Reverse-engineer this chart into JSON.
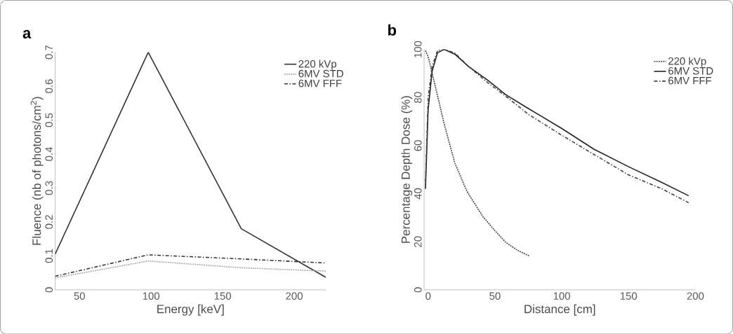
{
  "chart_data": [
    {
      "type": "line",
      "title": "a",
      "xlabel": "Energy [keV]",
      "ylabel": "Fluence (nb of photons/cm$^{2}$)",
      "xlim": [
        33,
        222
      ],
      "ylim": [
        0,
        0.7
      ],
      "xticks": [
        50,
        100,
        150,
        200
      ],
      "yticks": [
        0,
        0.1,
        0.2,
        0.3,
        0.4,
        0.5,
        0.6,
        0.7
      ],
      "legend": "top right",
      "marker": "none",
      "series": [
        {
          "name": "220 kVp",
          "color": "#333333",
          "line_style": "solid",
          "x": [
            33,
            98,
            163,
            222
          ],
          "values": [
            0.105,
            0.7,
            0.18,
            0.037
          ]
        },
        {
          "name": "6MV STD",
          "color": "#aaaaaa",
          "line_style": "dotted",
          "x": [
            33,
            98,
            163,
            222
          ],
          "values": [
            0.035,
            0.085,
            0.065,
            0.055
          ]
        },
        {
          "name": "6MV FFF",
          "color": "#333333",
          "line_style": "dashed",
          "x": [
            33,
            98,
            163,
            222
          ],
          "values": [
            0.04,
            0.103,
            0.091,
            0.079
          ]
        }
      ]
    },
    {
      "type": "line",
      "title": "b",
      "xlabel": "Distance [cm]",
      "ylabel": "Percentage Depth Dose (%)",
      "xlim": [
        -3,
        200
      ],
      "ylim": [
        0,
        100
      ],
      "xticks": [
        0,
        50,
        100,
        150,
        200
      ],
      "yticks": [
        0,
        20,
        40,
        60,
        80,
        100
      ],
      "legend": "top right",
      "marker": "none",
      "series": [
        {
          "name": "220 kVp",
          "color": "#444444",
          "line_style": "dotted",
          "x": [
            -2,
            0,
            5,
            12,
            20,
            29,
            41,
            50,
            58,
            67,
            76
          ],
          "values": [
            99.5,
            97,
            85.5,
            69,
            52.7,
            41,
            30.4,
            24.6,
            19.8,
            16.4,
            14
          ]
        },
        {
          "name": "6MV STD",
          "color": "#222222",
          "line_style": "solid",
          "x": [
            -2,
            0,
            3,
            7,
            12,
            20,
            30,
            45,
            58,
            75,
            100,
            124,
            150,
            174,
            195
          ],
          "values": [
            42,
            75,
            91,
            98.6,
            100,
            98,
            93,
            87,
            81.2,
            75.4,
            67.1,
            58.5,
            51.2,
            44.9,
            39.1
          ]
        },
        {
          "name": "6MV FFF",
          "color": "#444444",
          "line_style": "dashed",
          "x": [
            -2,
            0,
            3,
            7,
            12,
            20,
            30,
            45,
            60,
            75,
            100,
            125,
            150,
            175,
            195
          ],
          "values": [
            45,
            80,
            93,
            99.5,
            100,
            98.5,
            93,
            86,
            79.7,
            73,
            64.3,
            56,
            47.8,
            42,
            36.2
          ]
        }
      ]
    }
  ]
}
